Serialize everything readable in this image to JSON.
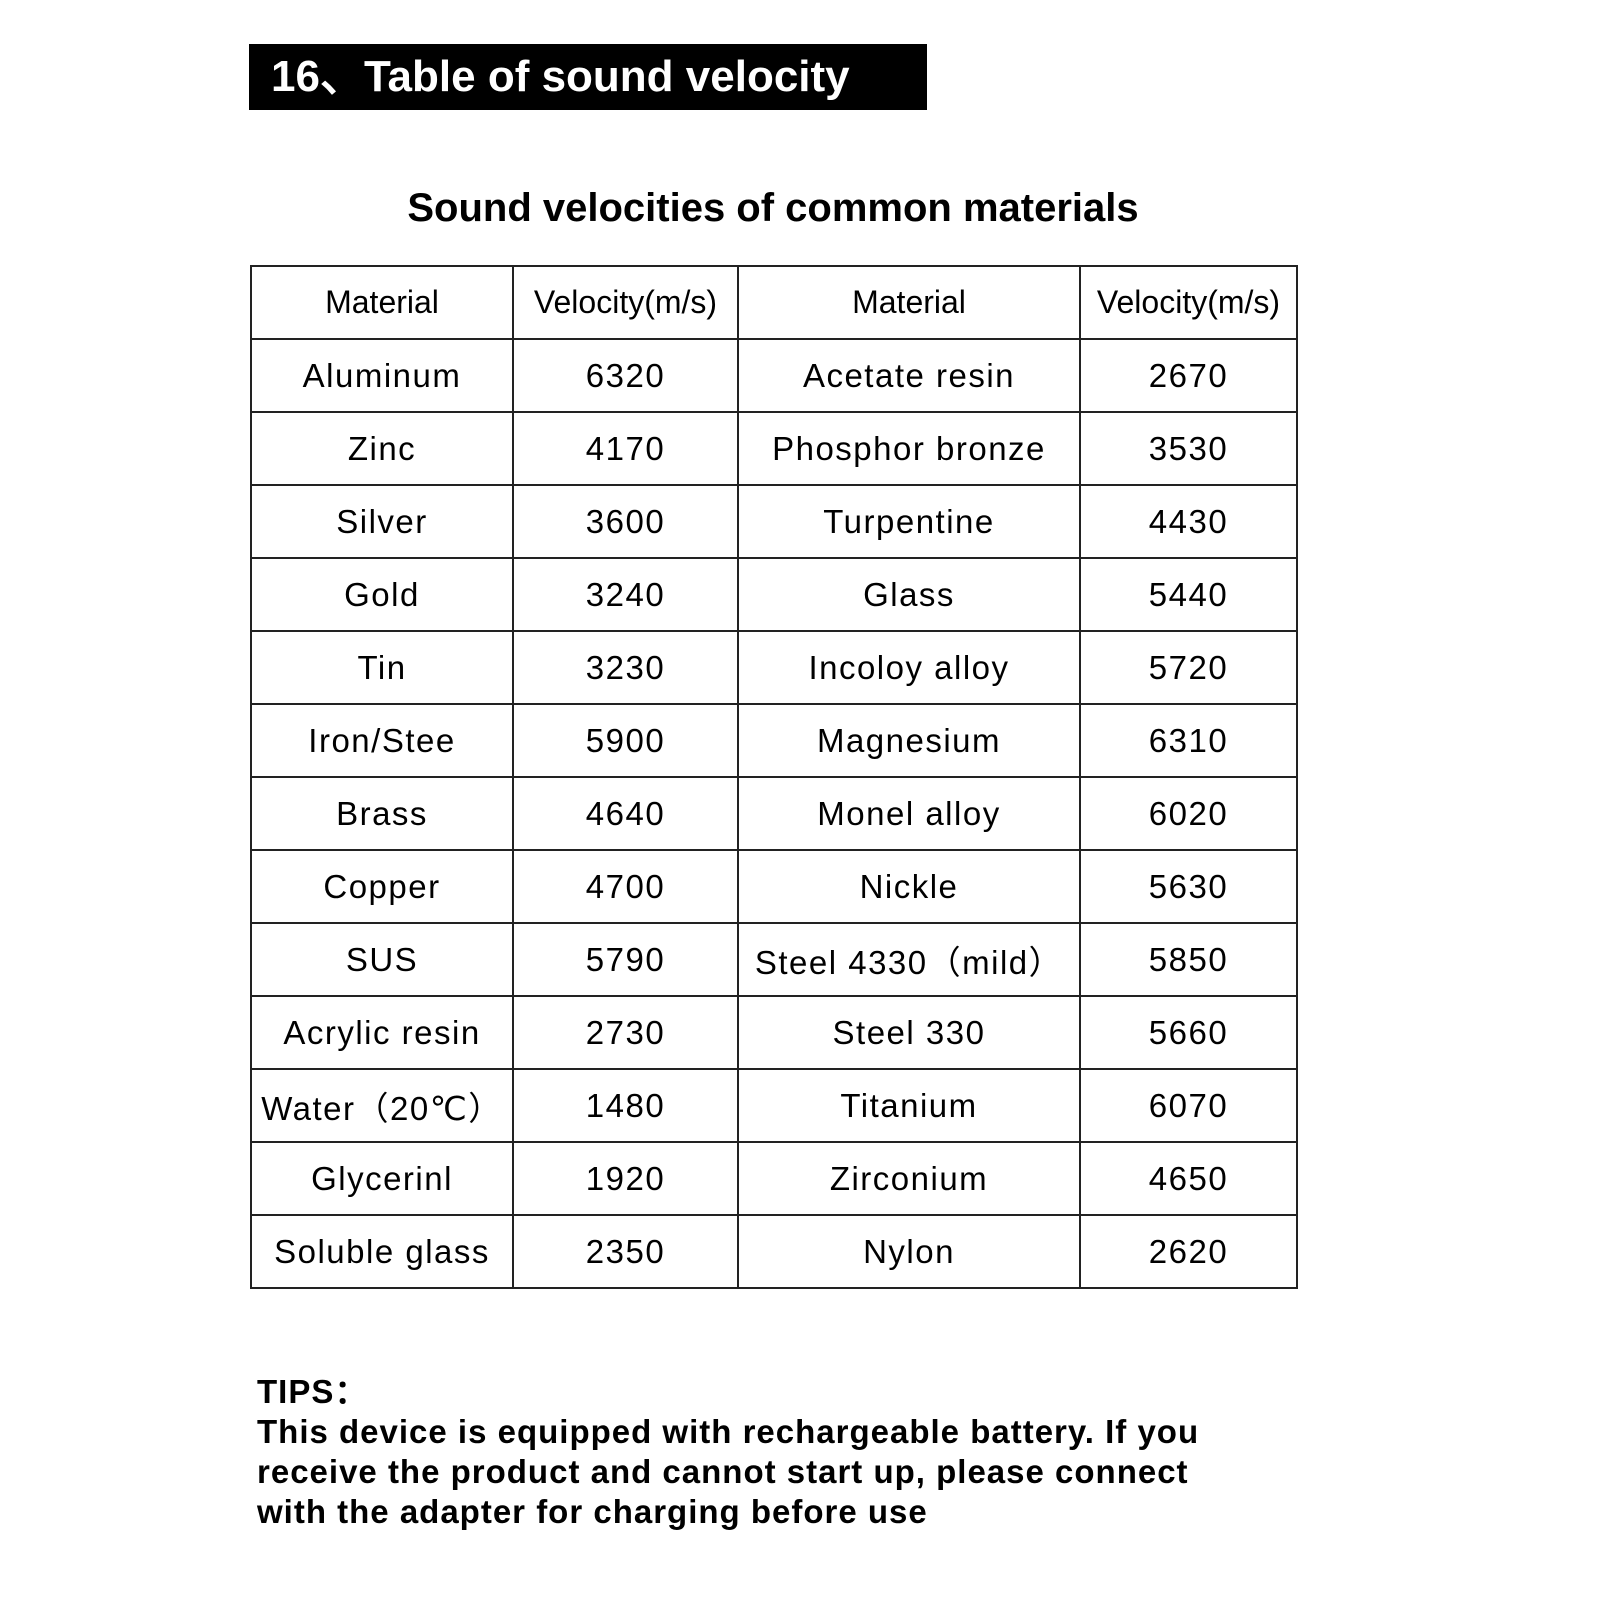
{
  "header": {
    "title": "16、Table of sound velocity"
  },
  "subtitle": "Sound velocities of common materials",
  "table": {
    "columns": [
      "Material",
      "Velocity(m/s)",
      "Material",
      "Velocity(m/s)"
    ],
    "rows": [
      [
        "Aluminum",
        6320,
        "Acetate resin",
        2670
      ],
      [
        "Zinc",
        4170,
        "Phosphor bronze",
        3530
      ],
      [
        "Silver",
        3600,
        "Turpentine",
        4430
      ],
      [
        "Gold",
        3240,
        "Glass",
        5440
      ],
      [
        "Tin",
        3230,
        "Incoloy alloy",
        5720
      ],
      [
        "Iron/Stee",
        5900,
        "Magnesium",
        6310
      ],
      [
        "Brass",
        4640,
        "Monel alloy",
        6020
      ],
      [
        "Copper",
        4700,
        "Nickle",
        5630
      ],
      [
        "SUS",
        5790,
        "Steel 4330（mild）",
        5850
      ],
      [
        "Acrylic resin",
        2730,
        "Steel 330",
        5660
      ],
      [
        "Water（20℃）",
        1480,
        "Titanium",
        6070
      ],
      [
        "Glycerinl",
        1920,
        "Zirconium",
        4650
      ],
      [
        "Soluble glass",
        2350,
        "Nylon",
        2620
      ]
    ]
  },
  "tips": {
    "label": "TIPS：",
    "lines": [
      "This device is equipped with rechargeable battery. If you",
      "receive the product and cannot start up, please connect",
      "with the adapter for charging before use"
    ]
  }
}
